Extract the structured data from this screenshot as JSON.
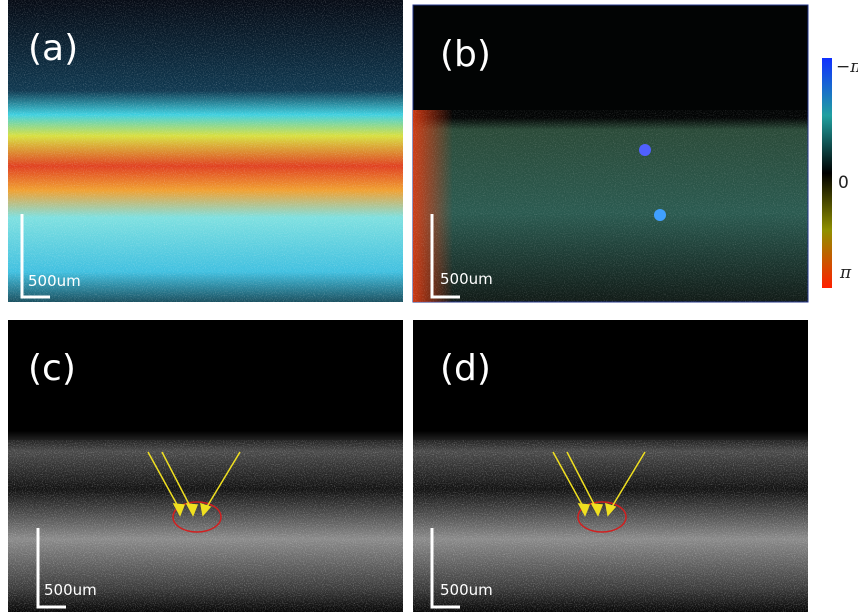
{
  "panels": [
    {
      "label": "(a)",
      "scale_bar": "500um"
    },
    {
      "label": "(b)",
      "scale_bar": "500um"
    },
    {
      "label": "(c)",
      "scale_bar": "500um"
    },
    {
      "label": "(d)",
      "scale_bar": "500um"
    }
  ],
  "colorbar": {
    "labels": [
      "−π",
      "0",
      "π"
    ]
  }
}
